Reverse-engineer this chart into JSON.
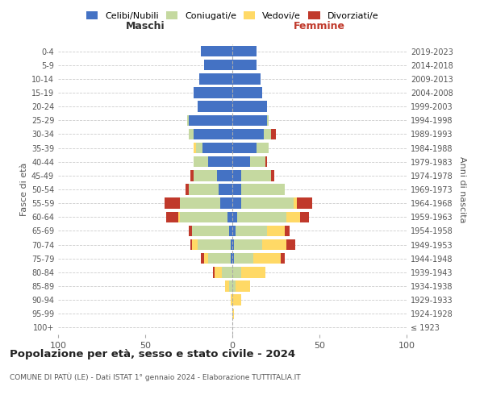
{
  "age_groups": [
    "100+",
    "95-99",
    "90-94",
    "85-89",
    "80-84",
    "75-79",
    "70-74",
    "65-69",
    "60-64",
    "55-59",
    "50-54",
    "45-49",
    "40-44",
    "35-39",
    "30-34",
    "25-29",
    "20-24",
    "15-19",
    "10-14",
    "5-9",
    "0-4"
  ],
  "birth_years": [
    "≤ 1923",
    "1924-1928",
    "1929-1933",
    "1934-1938",
    "1939-1943",
    "1944-1948",
    "1949-1953",
    "1954-1958",
    "1959-1963",
    "1964-1968",
    "1969-1973",
    "1974-1978",
    "1979-1983",
    "1984-1988",
    "1989-1993",
    "1994-1998",
    "1999-2003",
    "2004-2008",
    "2009-2013",
    "2014-2018",
    "2019-2023"
  ],
  "male_celibi": [
    0,
    0,
    0,
    0,
    0,
    1,
    1,
    2,
    3,
    7,
    8,
    9,
    14,
    17,
    22,
    25,
    20,
    22,
    19,
    16,
    18
  ],
  "male_coniugati": [
    0,
    0,
    0,
    2,
    6,
    13,
    19,
    21,
    27,
    23,
    17,
    13,
    8,
    4,
    3,
    1,
    0,
    0,
    0,
    0,
    0
  ],
  "male_vedovi": [
    0,
    0,
    1,
    2,
    4,
    2,
    3,
    0,
    1,
    0,
    0,
    0,
    0,
    1,
    0,
    0,
    0,
    0,
    0,
    0,
    0
  ],
  "male_divorziati": [
    0,
    0,
    0,
    0,
    1,
    2,
    1,
    2,
    7,
    9,
    2,
    2,
    0,
    0,
    0,
    0,
    0,
    0,
    0,
    0,
    0
  ],
  "female_nubili": [
    0,
    0,
    0,
    0,
    0,
    1,
    1,
    2,
    3,
    5,
    5,
    5,
    10,
    14,
    18,
    20,
    20,
    17,
    16,
    14,
    14
  ],
  "female_coniugate": [
    0,
    0,
    0,
    2,
    5,
    11,
    16,
    18,
    28,
    30,
    25,
    17,
    9,
    7,
    4,
    1,
    0,
    0,
    0,
    0,
    0
  ],
  "female_vedove": [
    0,
    1,
    5,
    8,
    14,
    16,
    14,
    10,
    8,
    2,
    0,
    0,
    0,
    0,
    0,
    0,
    0,
    0,
    0,
    0,
    0
  ],
  "female_divorziate": [
    0,
    0,
    0,
    0,
    0,
    2,
    5,
    3,
    5,
    9,
    0,
    2,
    1,
    0,
    3,
    0,
    0,
    0,
    0,
    0,
    0
  ],
  "color_celibi": "#4472c4",
  "color_coniugati": "#c5d9a0",
  "color_vedovi": "#ffd966",
  "color_divorziati": "#c0392b",
  "xlim": 100,
  "title": "Popolazione per età, sesso e stato civile - 2024",
  "subtitle": "COMUNE DI PATÙ (LE) - Dati ISTAT 1° gennaio 2024 - Elaborazione TUTTITALIA.IT",
  "ylabel_left": "Fasce di età",
  "ylabel_right": "Anni di nascita",
  "label_maschi": "Maschi",
  "label_femmine": "Femmine",
  "legend_labels": [
    "Celibi/Nubili",
    "Coniugati/e",
    "Vedovi/e",
    "Divorziati/e"
  ],
  "bg_color": "#ffffff",
  "grid_color": "#cccccc",
  "bar_height": 0.78
}
